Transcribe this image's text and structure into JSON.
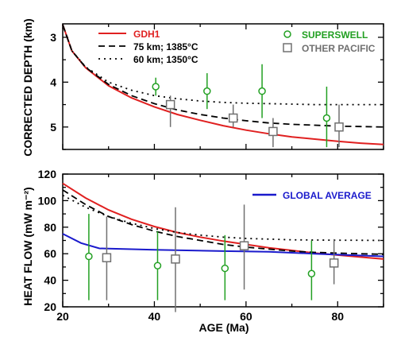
{
  "chart_data": [
    {
      "type": "line",
      "panel": "top",
      "ylabel": "CORRECTED DEPTH (km)",
      "xlim": [
        20,
        90
      ],
      "ylim": [
        2.7,
        5.5
      ],
      "y_inverted": true,
      "yticks": [
        3,
        4,
        5
      ],
      "legend_left": [
        {
          "label": "GDH1",
          "color": "#e02020",
          "style": "solid"
        },
        {
          "label": "75 km; 1385°C",
          "color": "#000000",
          "style": "dashed"
        },
        {
          "label": "60 km; 1350°C",
          "color": "#000000",
          "style": "dotted"
        }
      ],
      "legend_right": [
        {
          "label": "SUPERSWELL",
          "color": "#22a022",
          "marker": "circle"
        },
        {
          "label": "OTHER PACIFIC",
          "color": "#707070",
          "marker": "square"
        }
      ],
      "series": [
        {
          "name": "GDH1",
          "color": "#e02020",
          "style": "solid",
          "x": [
            20,
            22,
            25,
            30,
            35,
            40,
            45,
            50,
            55,
            60,
            65,
            70,
            75,
            80,
            85,
            90
          ],
          "y": [
            2.72,
            3.3,
            3.68,
            4.08,
            4.35,
            4.55,
            4.72,
            4.85,
            4.97,
            5.07,
            5.15,
            5.22,
            5.27,
            5.32,
            5.36,
            5.39
          ]
        },
        {
          "name": "75 km; 1385°C",
          "color": "#000000",
          "style": "dashed",
          "x": [
            20,
            22,
            25,
            30,
            35,
            40,
            45,
            50,
            55,
            60,
            65,
            70,
            75,
            80,
            85,
            90
          ],
          "y": [
            2.72,
            3.3,
            3.67,
            4.05,
            4.3,
            4.48,
            4.62,
            4.72,
            4.8,
            4.86,
            4.91,
            4.94,
            4.96,
            4.98,
            4.99,
            5.0
          ]
        },
        {
          "name": "60 km; 1350°C",
          "color": "#000000",
          "style": "dotted",
          "x": [
            20,
            22,
            25,
            30,
            35,
            40,
            45,
            50,
            55,
            60,
            65,
            70,
            75,
            80,
            85,
            90
          ],
          "y": [
            2.72,
            3.3,
            3.66,
            4.0,
            4.18,
            4.3,
            4.37,
            4.42,
            4.45,
            4.47,
            4.48,
            4.49,
            4.5,
            4.5,
            4.5,
            4.5
          ]
        }
      ],
      "points": [
        {
          "group": "SUPERSWELL",
          "x": 40.3,
          "y": 4.1,
          "err_low": 3.9,
          "err_high": 4.3
        },
        {
          "group": "SUPERSWELL",
          "x": 51.5,
          "y": 4.2,
          "err_low": 3.8,
          "err_high": 4.6
        },
        {
          "group": "SUPERSWELL",
          "x": 63.5,
          "y": 4.2,
          "err_low": 3.6,
          "err_high": 4.8
        },
        {
          "group": "SUPERSWELL",
          "x": 77.6,
          "y": 4.8,
          "err_low": 4.1,
          "err_high": 5.45
        },
        {
          "group": "OTHER PACIFIC",
          "x": 43.5,
          "y": 4.5,
          "err_low": 4.3,
          "err_high": 5.0
        },
        {
          "group": "OTHER PACIFIC",
          "x": 57.2,
          "y": 4.8,
          "err_low": 4.5,
          "err_high": 5.0
        },
        {
          "group": "OTHER PACIFIC",
          "x": 65.9,
          "y": 5.1,
          "err_low": 4.8,
          "err_high": 5.45
        },
        {
          "group": "OTHER PACIFIC",
          "x": 80.3,
          "y": 5.0,
          "err_low": 4.5,
          "err_high": 5.45
        }
      ]
    },
    {
      "type": "line",
      "panel": "bottom",
      "xlabel": "AGE (Ma)",
      "ylabel": "HEAT FLOW (mW m⁻²)",
      "xlim": [
        20,
        90
      ],
      "ylim": [
        20,
        120
      ],
      "xticks": [
        20,
        40,
        60,
        80
      ],
      "yticks": [
        20,
        40,
        60,
        80,
        100,
        120
      ],
      "legend": [
        {
          "label": "GLOBAL AVERAGE",
          "color": "#1a1acc",
          "style": "solid"
        }
      ],
      "series": [
        {
          "name": "GDH1",
          "color": "#e02020",
          "style": "solid",
          "x": [
            20,
            25,
            30,
            35,
            40,
            45,
            50,
            55,
            60,
            65,
            70,
            75,
            80,
            85,
            90
          ],
          "y": [
            113,
            102,
            93,
            86,
            80.5,
            76,
            72.5,
            69.5,
            67,
            64.5,
            62.5,
            60.5,
            59,
            57.5,
            56
          ]
        },
        {
          "name": "75 km; 1385°C",
          "color": "#000000",
          "style": "dashed",
          "x": [
            20,
            25,
            30,
            35,
            40,
            45,
            50,
            55,
            60,
            65,
            70,
            75,
            80,
            85,
            90
          ],
          "y": [
            108,
            97,
            88,
            82,
            77,
            73,
            70,
            67,
            65,
            63.5,
            62,
            61,
            60.5,
            60,
            59.5
          ]
        },
        {
          "name": "60 km; 1350°C",
          "color": "#000000",
          "style": "dotted",
          "x": [
            20,
            25,
            30,
            35,
            40,
            45,
            50,
            55,
            60,
            65,
            70,
            75,
            80,
            85,
            90
          ],
          "y": [
            104,
            95,
            88,
            83,
            79,
            76,
            74,
            72.5,
            71.5,
            71,
            70.5,
            70.3,
            70.2,
            70.1,
            70
          ]
        },
        {
          "name": "GLOBAL AVERAGE",
          "color": "#1a1acc",
          "style": "solid",
          "x": [
            20,
            24,
            28,
            40,
            55,
            65,
            75,
            90
          ],
          "y": [
            75,
            68,
            64,
            63,
            62,
            61.5,
            60,
            58
          ]
        }
      ],
      "points": [
        {
          "group": "SUPERSWELL",
          "x": 25.7,
          "y": 58,
          "err_low": 25,
          "err_high": 90
        },
        {
          "group": "SUPERSWELL",
          "x": 40.7,
          "y": 51,
          "err_low": 25,
          "err_high": 77
        },
        {
          "group": "SUPERSWELL",
          "x": 55.4,
          "y": 49,
          "err_low": 25,
          "err_high": 74
        },
        {
          "group": "SUPERSWELL",
          "x": 74.3,
          "y": 45,
          "err_low": 25,
          "err_high": 70
        },
        {
          "group": "OTHER PACIFIC",
          "x": 29.6,
          "y": 57,
          "err_low": 25,
          "err_high": 88
        },
        {
          "group": "OTHER PACIFIC",
          "x": 44.6,
          "y": 56,
          "err_low": 16,
          "err_high": 95
        },
        {
          "group": "OTHER PACIFIC",
          "x": 59.6,
          "y": 66,
          "err_low": 33,
          "err_high": 97
        },
        {
          "group": "OTHER PACIFIC",
          "x": 79.2,
          "y": 53,
          "err_low": 37,
          "err_high": 71
        }
      ]
    }
  ]
}
